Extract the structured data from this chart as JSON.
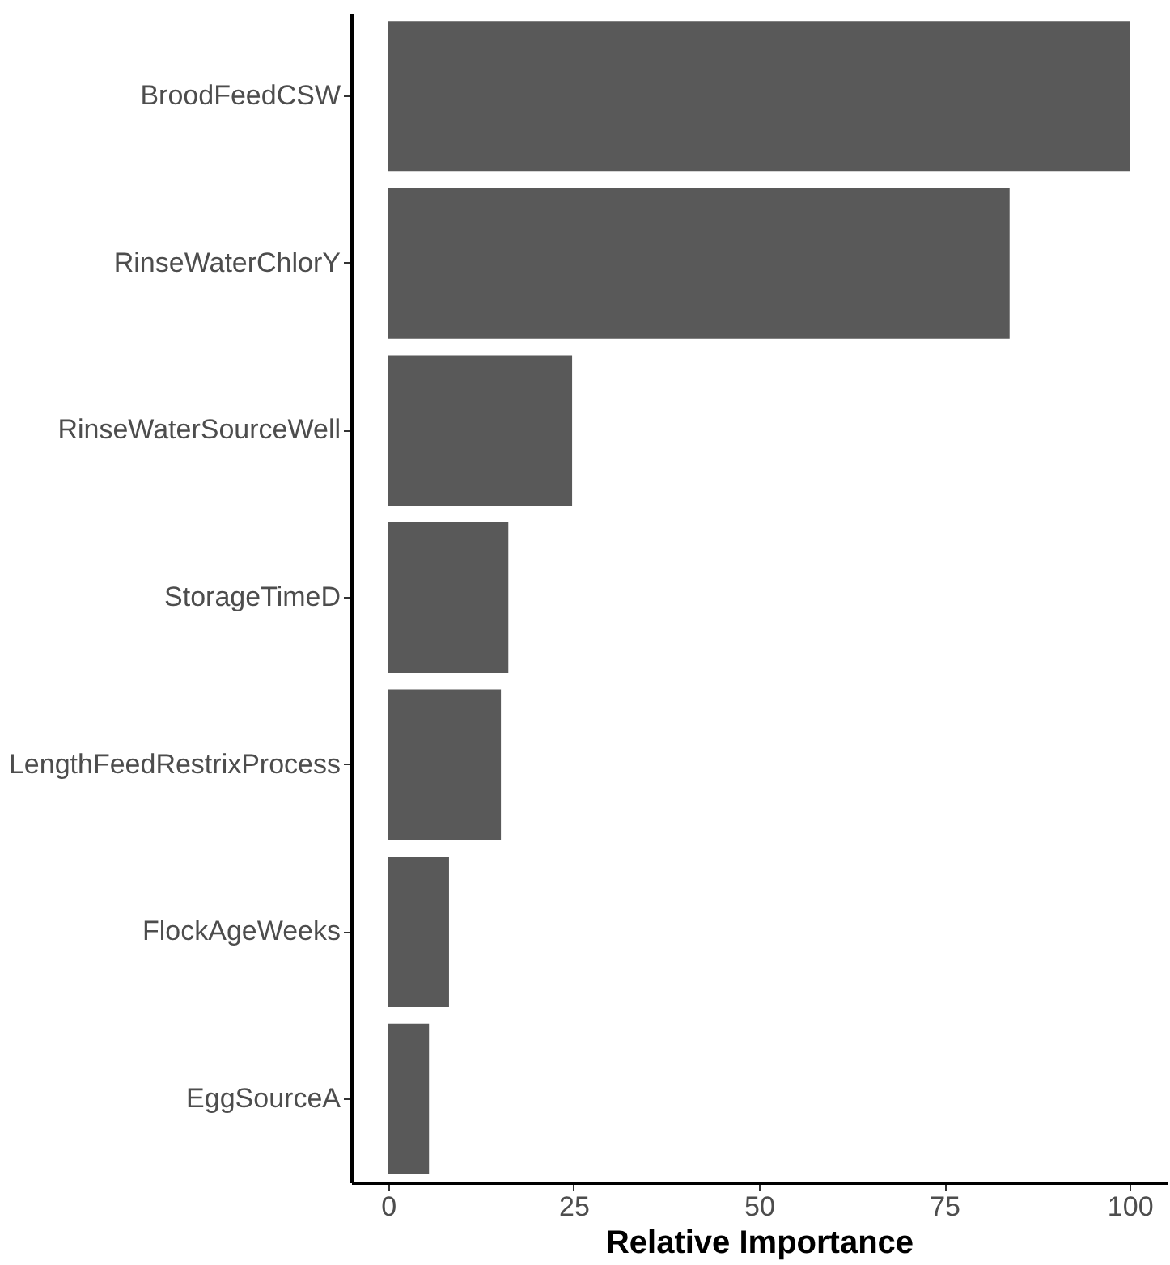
{
  "chart_data": {
    "type": "bar",
    "orientation": "horizontal",
    "xlabel": "Relative Importance",
    "categories": [
      "BroodFeedCSW",
      "RinseWaterChlorY",
      "RinseWaterSourceWell",
      "StorageTimeD",
      "LengthFeedRestrixProcess",
      "FlockAgeWeeks",
      "EggSourceA"
    ],
    "values": [
      100,
      83.8,
      24.8,
      16.2,
      15.2,
      8.2,
      5.5
    ],
    "color": "#595959",
    "xlim": [
      -5,
      105
    ],
    "xticks": [
      0,
      25,
      50,
      75,
      100
    ],
    "grid": false
  }
}
